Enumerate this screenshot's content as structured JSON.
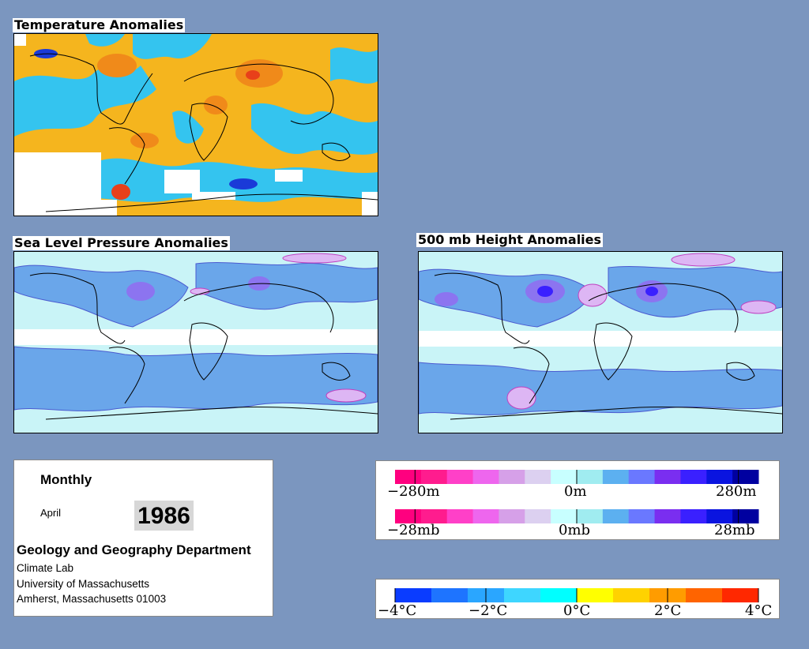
{
  "panels": {
    "temperature": {
      "title": "Temperature Anomalies"
    },
    "slp": {
      "title": "Sea Level Pressure Anomalies"
    },
    "height": {
      "title": "500 mb Height Anomalies"
    }
  },
  "info": {
    "period": "Monthly",
    "month": "April",
    "year": "1986",
    "department": "Geology and Geography Department",
    "lines": [
      "Climate Lab",
      "University of Massachusetts",
      "Amherst, Massachusetts 01003"
    ]
  },
  "pressure_legend": {
    "height_labels": [
      "−280m",
      "0m",
      "280m"
    ],
    "pressure_labels": [
      "−28mb",
      "0mb",
      "28mb"
    ],
    "colors": [
      "#ff007f",
      "#ff1c8e",
      "#ff40c8",
      "#ee66ee",
      "#d6a0e8",
      "#dcd0f0",
      "#c8ffff",
      "#a0ecf0",
      "#5cb0f0",
      "#6a78ff",
      "#7a2ef0",
      "#3a20ff",
      "#0a14e0",
      "#0000a0"
    ]
  },
  "temperature_legend": {
    "labels": [
      "−4°C",
      "−2°C",
      "0°C",
      "2°C",
      "4°C"
    ],
    "colors": [
      "#0a3cff",
      "#1e74ff",
      "#2aa6ff",
      "#3ed6ff",
      "#00ffff",
      "#ffff00",
      "#ffd200",
      "#ff9c00",
      "#ff6400",
      "#ff2800"
    ]
  },
  "colors": {
    "background": "#7b96bf",
    "temp_warm": "#f5b51e",
    "temp_cool": "#34c4ef",
    "pressure_neutral": "#c9f4f7",
    "pressure_low": "#6aa6ea"
  }
}
